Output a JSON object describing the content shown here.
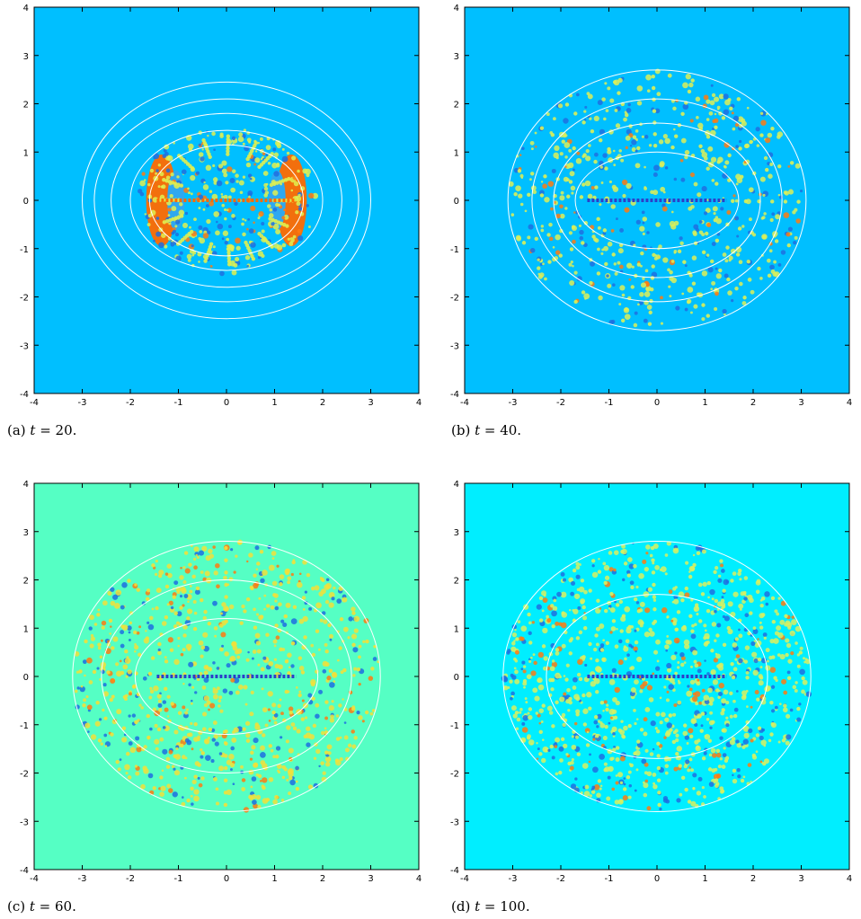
{
  "figure": {
    "panels": [
      {
        "id": "a",
        "caption_prefix": "(a) ",
        "caption_var": "t",
        "caption_suffix": " = 20.",
        "background": "#00BFFF",
        "blob_color": "#FF6A00",
        "speck_color": "#E0F050",
        "contour_color": "#ffffff"
      },
      {
        "id": "b",
        "caption_prefix": "(b) ",
        "caption_var": "t",
        "caption_suffix": " = 40.",
        "background": "#00BFFF",
        "speck_color": "#DCEF58",
        "contour_color": "#ffffff"
      },
      {
        "id": "c",
        "caption_prefix": "(c) ",
        "caption_var": "t",
        "caption_suffix": " = 60.",
        "background": "#55FFC4",
        "speck_color": "#F2E03A",
        "contour_color": "#ffffff"
      },
      {
        "id": "d",
        "caption_prefix": "(d) ",
        "caption_var": "t",
        "caption_suffix": " = 100.",
        "background": "#00EEFF",
        "speck_color": "#D8F060",
        "contour_color": "#ffffff"
      }
    ]
  },
  "chart_data": [
    {
      "type": "heatmap",
      "panel": "a",
      "xlim": [
        -4,
        4
      ],
      "ylim": [
        -4,
        4
      ],
      "x_ticks": [
        "-4",
        "-3",
        "-2",
        "-1",
        "0",
        "1",
        "2",
        "3",
        "4"
      ],
      "y_ticks": [
        "4",
        "3",
        "2",
        "1",
        "0",
        "-1",
        "-2",
        "-3",
        "-4"
      ],
      "contours": [
        {
          "a": 1.6,
          "b": 1.15
        },
        {
          "a": 2.0,
          "b": 1.45
        },
        {
          "a": 2.4,
          "b": 1.8
        },
        {
          "a": 2.75,
          "b": 2.1
        },
        {
          "a": 3.0,
          "b": 2.45
        }
      ]
    },
    {
      "type": "heatmap",
      "panel": "b",
      "xlim": [
        -4,
        4
      ],
      "ylim": [
        -4,
        4
      ],
      "x_ticks": [
        "-4",
        "-3",
        "-2",
        "-1",
        "0",
        "1",
        "2",
        "3",
        "4"
      ],
      "y_ticks": [
        "4",
        "3",
        "2",
        "1",
        "0",
        "-1",
        "-2",
        "-3",
        "-4"
      ],
      "contours": [
        {
          "a": 1.7,
          "b": 1.0
        },
        {
          "a": 2.15,
          "b": 1.6
        },
        {
          "a": 2.6,
          "b": 2.1
        },
        {
          "a": 3.1,
          "b": 2.7
        }
      ]
    },
    {
      "type": "heatmap",
      "panel": "c",
      "xlim": [
        -4,
        4
      ],
      "ylim": [
        -4,
        4
      ],
      "x_ticks": [
        "-4",
        "-3",
        "-2",
        "-1",
        "0",
        "1",
        "2",
        "3",
        "4"
      ],
      "y_ticks": [
        "4",
        "3",
        "2",
        "1",
        "0",
        "-1",
        "-2",
        "-3",
        "-4"
      ],
      "contours": [
        {
          "a": 1.9,
          "b": 1.2
        },
        {
          "a": 2.6,
          "b": 2.0
        },
        {
          "a": 3.2,
          "b": 2.8
        }
      ]
    },
    {
      "type": "heatmap",
      "panel": "d",
      "xlim": [
        -4,
        4
      ],
      "ylim": [
        -4,
        4
      ],
      "x_ticks": [
        "-4",
        "-3",
        "-2",
        "-1",
        "0",
        "1",
        "2",
        "3",
        "4"
      ],
      "y_ticks": [
        "4",
        "3",
        "2",
        "1",
        "0",
        "-1",
        "-2",
        "-3",
        "-4"
      ],
      "contours": [
        {
          "a": 2.3,
          "b": 1.7
        },
        {
          "a": 3.2,
          "b": 2.8
        }
      ]
    }
  ]
}
